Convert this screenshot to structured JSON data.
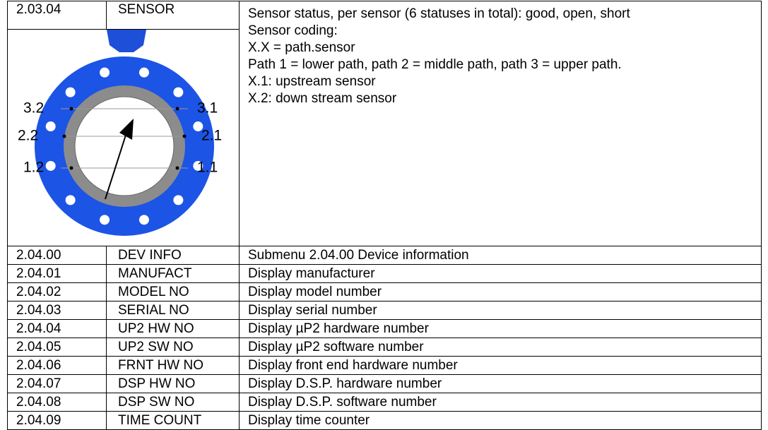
{
  "sensor_row": {
    "code": "2.03.04",
    "name": "SENSOR",
    "description": [
      "Sensor status, per sensor (6 statuses in total): good, open, short",
      "Sensor coding:",
      "X.X = path.sensor",
      "Path 1 = lower path, path 2 = middle path, path 3 = upper path.",
      "X.1: upstream sensor",
      "X.2: down stream sensor"
    ],
    "diagram_labels": {
      "left": [
        "3.2",
        "2.2",
        "1.2"
      ],
      "right": [
        "3.1",
        "2.1",
        "1.1"
      ]
    }
  },
  "rows": [
    [
      "2.04.00",
      "DEV INFO",
      "Submenu 2.04.00 Device information"
    ],
    [
      "2.04.01",
      "MANUFACT",
      "Display manufacturer"
    ],
    [
      "2.04.02",
      "MODEL NO",
      "Display model number"
    ],
    [
      "2.04.03",
      "SERIAL NO",
      "Display serial number"
    ],
    [
      "2.04.04",
      "UP2 HW NO",
      "Display µP2 hardware number"
    ],
    [
      "2.04.05",
      "UP2 SW NO",
      "Display µP2 software number"
    ],
    [
      "2.04.06",
      "FRNT HW NO",
      "Display front end hardware number"
    ],
    [
      "2.04.07",
      "DSP HW NO",
      "Display D.S.P. hardware number"
    ],
    [
      "2.04.08",
      "DSP SW NO",
      "Display D.S.P. software number"
    ],
    [
      "2.04.09",
      "TIME COUNT",
      "Display time counter"
    ]
  ]
}
